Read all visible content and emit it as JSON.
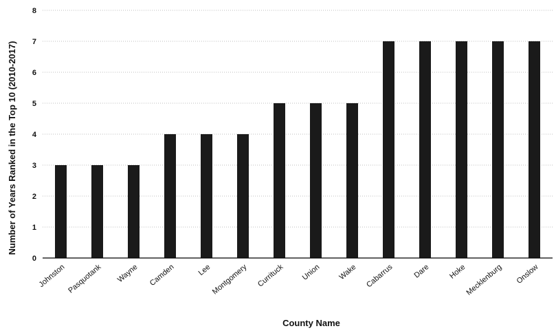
{
  "chart_data": {
    "type": "bar",
    "categories": [
      "Johnston",
      "Pasquotank",
      "Wayne",
      "Camden",
      "Lee",
      "Montgomery",
      "Currituck",
      "Union",
      "Wake",
      "Cabarrus",
      "Dare",
      "Hoke",
      "Mecklenburg",
      "Onslow"
    ],
    "values": [
      3,
      3,
      3,
      4,
      4,
      4,
      5,
      5,
      5,
      7,
      7,
      7,
      7,
      7
    ],
    "xlabel": "County Name",
    "ylabel": "Number of Years Ranked in the Top 10 (2010-2017)",
    "ylim": [
      0,
      8
    ],
    "yticks": [
      0,
      1,
      2,
      3,
      4,
      5,
      6,
      7,
      8
    ],
    "grid": true,
    "colors": {
      "bar": "#1a1a1a",
      "grid": "#bdbdbd"
    }
  }
}
